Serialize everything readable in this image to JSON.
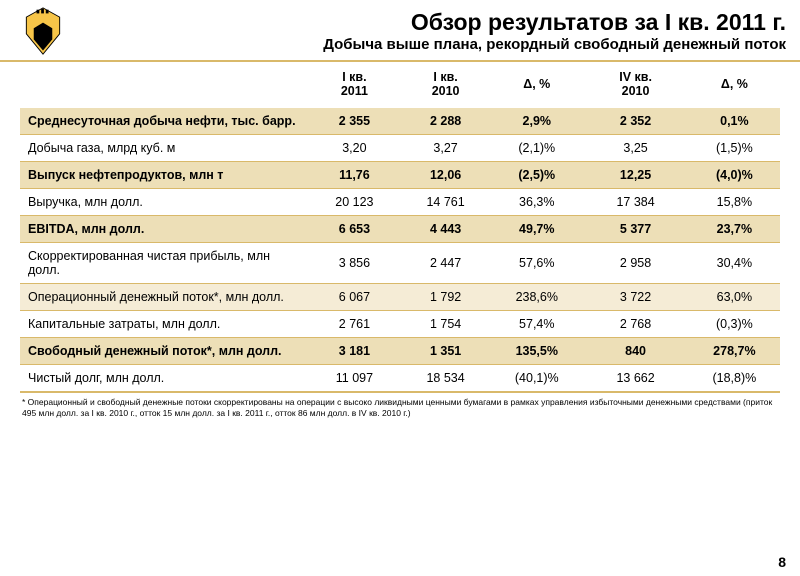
{
  "header": {
    "title": "Обзор результатов за I кв. 2011 г.",
    "subtitle": "Добыча выше плана, рекордный свободный денежный поток"
  },
  "columns": [
    "",
    "I кв. 2011",
    "I кв. 2010",
    "Δ, %",
    "IV кв. 2010",
    "Δ, %"
  ],
  "rows": [
    {
      "hl": true,
      "cells": [
        "Среднесуточная добыча нефти, тыс. барр.",
        "2 355",
        "2 288",
        "2,9%",
        "2 352",
        "0,1%"
      ]
    },
    {
      "hl": false,
      "cells": [
        "Добыча газа, млрд куб. м",
        "3,20",
        "3,27",
        "(2,1)%",
        "3,25",
        "(1,5)%"
      ]
    },
    {
      "hl": true,
      "cells": [
        "Выпуск нефтепродуктов, млн т",
        "11,76",
        "12,06",
        "(2,5)%",
        "12,25",
        "(4,0)%"
      ]
    },
    {
      "hl": false,
      "cells": [
        "Выручка, млн долл.",
        "20 123",
        "14 761",
        "36,3%",
        "17 384",
        "15,8%"
      ]
    },
    {
      "hl": true,
      "cells": [
        "EBITDA, млн долл.",
        "6 653",
        "4 443",
        "49,7%",
        "5 377",
        "23,7%"
      ]
    },
    {
      "hl": false,
      "cells": [
        "Скорректированная чистая прибыль, млн долл.",
        "3 856",
        "2 447",
        "57,6%",
        "2 958",
        "30,4%"
      ]
    },
    {
      "hl": "light",
      "cells": [
        "Операционный денежный поток*, млн долл.",
        "6 067",
        "1 792",
        "238,6%",
        "3 722",
        "63,0%"
      ]
    },
    {
      "hl": false,
      "cells": [
        "Капитальные затраты, млн долл.",
        "2 761",
        "1 754",
        "57,4%",
        "2 768",
        "(0,3)%"
      ]
    },
    {
      "hl": true,
      "cells": [
        "Свободный денежный поток*, млн долл.",
        "3 181",
        "1 351",
        "135,5%",
        "840",
        "278,7%"
      ]
    },
    {
      "hl": false,
      "cells": [
        "Чистый долг, млн долл.",
        "11 097",
        "18 534",
        "(40,1)%",
        "13 662",
        "(18,8)%"
      ]
    }
  ],
  "footnote": "* Операционный и свободный денежные потоки скорректированы на операции с высоко ликвидными ценными бумагами в рамках управления избыточными денежными средствами (приток 495 млн долл. за I кв. 2010 г., отток 15 млн долл. за I кв. 2011 г., отток 86 млн долл. в IV кв. 2010 г.)",
  "page": "8",
  "colors": {
    "accent": "#d9b96a",
    "highlight": "#eddfb7",
    "highlight_light": "#f5ecd6"
  },
  "col_widths": [
    "38%",
    "12%",
    "12%",
    "12%",
    "14%",
    "12%"
  ]
}
